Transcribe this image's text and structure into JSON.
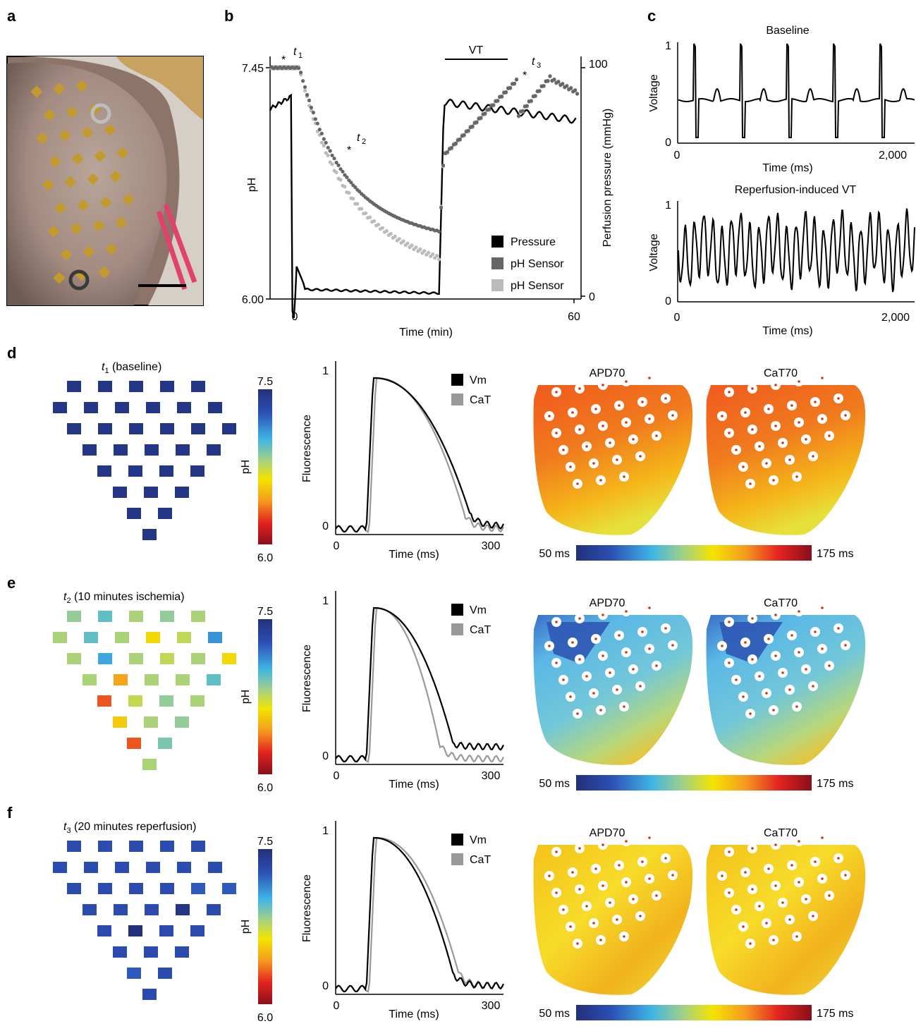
{
  "panels": {
    "a": "a",
    "b": "b",
    "c": "c",
    "d": "d",
    "e": "e",
    "f": "f"
  },
  "panel_b": {
    "xlabel": "Time (min)",
    "ylabel_left": "pH",
    "ylabel_right": "Perfusion pressure (mmHg)",
    "ytick_top": "7.45",
    "ytick_bottom": "6.00",
    "y2tick_top": "100",
    "y2tick_bottom": "0",
    "xtick_left": "0",
    "xtick_right": "60",
    "vt_label": "VT",
    "markers": [
      {
        "letter": "t",
        "sub": "1"
      },
      {
        "letter": "t",
        "sub": "2"
      },
      {
        "letter": "t",
        "sub": "3"
      }
    ],
    "star": "*",
    "legend": [
      "Pressure",
      "pH Sensor",
      "pH Sensor"
    ],
    "colors": {
      "pressure": "#000000",
      "sensor1": "#666666",
      "sensor2": "#bbbbbb"
    }
  },
  "panel_c": {
    "top": {
      "title": "Baseline",
      "ylabel": "Voltage",
      "xlabel": "Time (ms)",
      "xt0": "0",
      "xt1": "2,000",
      "yt0": "0",
      "yt1": "1"
    },
    "bottom": {
      "title": "Reperfusion-induced VT",
      "ylabel": "Voltage",
      "xlabel": "Time (ms)",
      "xt0": "0",
      "xt1": "2,000",
      "yt0": "0",
      "yt1": "1"
    }
  },
  "rows": [
    {
      "title_letter": "t",
      "title_sub": "1",
      "title_rest": " (baseline)",
      "colorbar": {
        "top": "7.5",
        "bottom": "6.0",
        "label": "pH"
      },
      "trace": {
        "ylabel": "Fluorescence",
        "xlabel": "Time (ms)",
        "yt1": "1",
        "yt0": "0",
        "xt0": "0",
        "xt1": "300",
        "legend": [
          "Vm",
          "CaT"
        ]
      },
      "maps": {
        "left": "APD70",
        "right": "CaT70"
      },
      "scale": {
        "min": "50 ms",
        "max": "175 ms"
      },
      "ph_values": [
        7.45,
        7.45,
        7.45,
        7.45,
        7.45,
        7.45,
        7.45,
        7.45,
        7.45,
        7.45,
        7.45,
        7.45,
        7.45,
        7.45,
        7.45,
        7.45,
        7.45,
        7.45,
        7.45,
        7.45,
        7.45,
        7.45,
        7.45,
        7.45,
        7.45,
        7.45,
        7.45,
        7.45,
        7.45,
        7.45,
        7.45,
        7.45
      ]
    },
    {
      "title_letter": "t",
      "title_sub": "2",
      "title_rest": " (10 minutes ischemia)",
      "colorbar": {
        "top": "7.5",
        "bottom": "6.0",
        "label": "pH"
      },
      "trace": {
        "ylabel": "Fluorescence",
        "xlabel": "Time (ms)",
        "yt1": "1",
        "yt0": "0",
        "xt0": "0",
        "xt1": "300",
        "legend": [
          "Vm",
          "CaT"
        ]
      },
      "maps": {
        "left": "APD70",
        "right": "CaT70"
      },
      "scale": {
        "min": "50 ms",
        "max": "175 ms"
      },
      "ph_values": [
        6.85,
        6.95,
        6.8,
        6.85,
        6.8,
        6.8,
        6.95,
        6.8,
        6.6,
        6.75,
        7.1,
        6.8,
        7.05,
        6.8,
        6.75,
        6.8,
        6.6,
        6.8,
        6.45,
        6.8,
        6.8,
        6.95,
        6.3,
        6.75,
        6.85,
        6.8,
        6.55,
        6.8,
        6.85,
        6.3,
        6.9,
        6.8
      ]
    },
    {
      "title_letter": "t",
      "title_sub": "3",
      "title_rest": " (20 minutes reperfusion)",
      "colorbar": {
        "top": "7.5",
        "bottom": "6.0",
        "label": "pH"
      },
      "trace": {
        "ylabel": "Fluorescence",
        "xlabel": "Time (ms)",
        "yt1": "1",
        "yt0": "0",
        "xt0": "0",
        "xt1": "300",
        "legend": [
          "Vm",
          "CaT"
        ]
      },
      "maps": {
        "left": "APD70",
        "right": "CaT70"
      },
      "scale": {
        "min": "50 ms",
        "max": "175 ms"
      },
      "ph_values": [
        7.3,
        7.3,
        7.3,
        7.3,
        7.3,
        7.3,
        7.3,
        7.3,
        7.3,
        7.3,
        7.3,
        7.3,
        7.3,
        7.3,
        7.3,
        7.25,
        7.25,
        7.3,
        7.3,
        7.3,
        7.45,
        7.3,
        7.3,
        7.5,
        7.3,
        7.3,
        7.3,
        7.3,
        7.3,
        7.25,
        7.3,
        7.3
      ]
    }
  ]
}
